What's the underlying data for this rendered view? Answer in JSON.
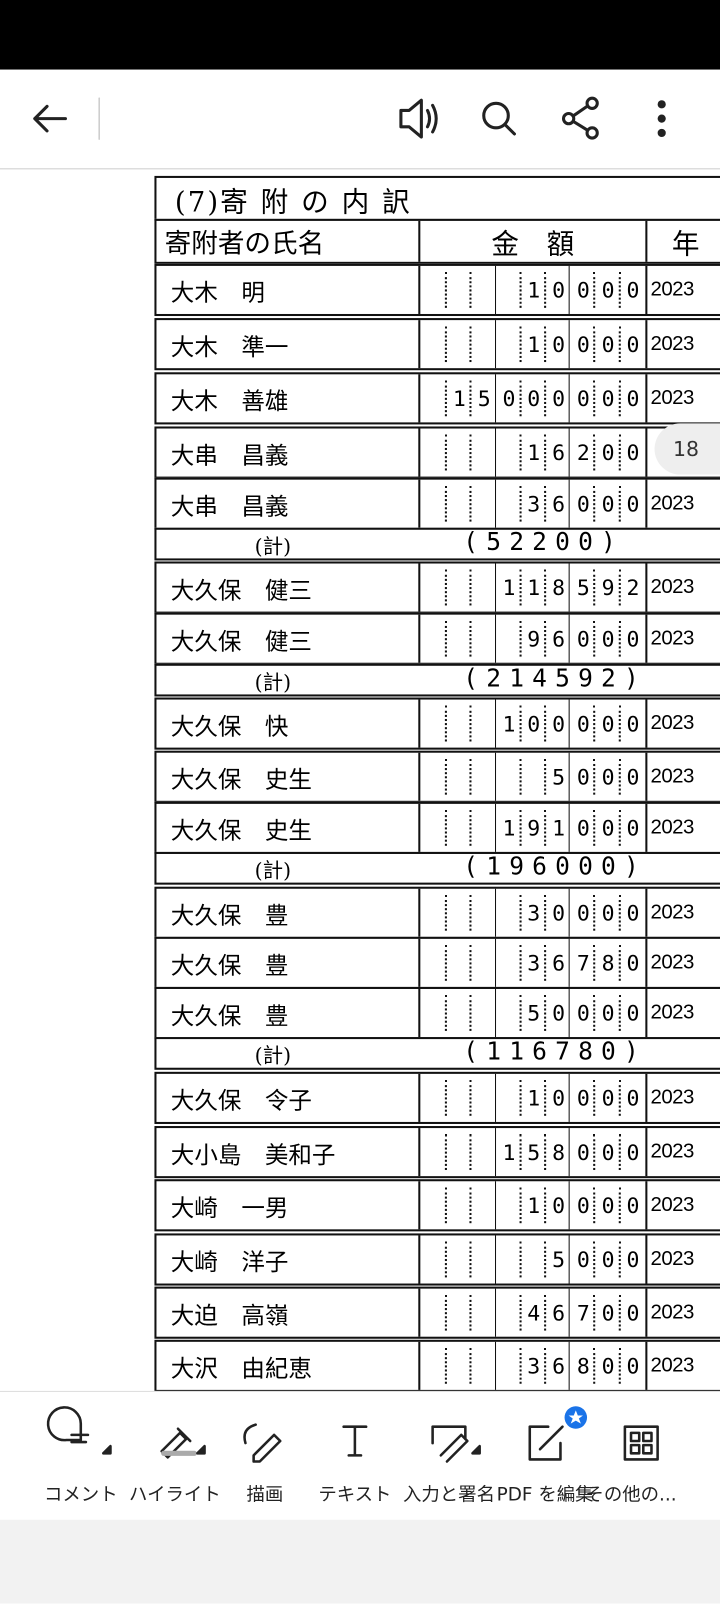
{
  "page_number": "18",
  "document": {
    "title": "(7)寄 附 の 内 訳",
    "headers": [
      "寄附者の氏名",
      "金　額",
      "年"
    ],
    "rows": [
      {
        "name": "大木　明",
        "amount": "10000",
        "year": "2023"
      },
      {
        "name": "大木　準一",
        "amount": "10000",
        "year": "2023"
      },
      {
        "name": "大木　善雄",
        "amount": "15000000",
        "year": "2023"
      },
      {
        "name": "大串　昌義",
        "amount": "16200"
      },
      {
        "name": "大串　昌義",
        "amount": "36000",
        "year": "2023"
      },
      {
        "label": "(計)",
        "total": "(52200)"
      },
      {
        "name": "大久保　健三",
        "amount": "118592",
        "year": "2023"
      },
      {
        "name": "大久保　健三",
        "amount": "96000",
        "year": "2023"
      },
      {
        "label": "(計)",
        "total": "(214592)"
      },
      {
        "name": "大久保　快",
        "amount": "100000",
        "year": "2023"
      },
      {
        "name": "大久保　史生",
        "amount": "5000",
        "year": "2023"
      },
      {
        "name": "大久保　史生",
        "amount": "191000",
        "year": "2023"
      },
      {
        "label": "(計)",
        "total": "(196000)"
      },
      {
        "name": "大久保　豊",
        "amount": "30000",
        "year": "2023"
      },
      {
        "name": "大久保　豊",
        "amount": "36780",
        "year": "2023"
      },
      {
        "name": "大久保　豊",
        "amount": "50000",
        "year": "2023"
      },
      {
        "label": "(計)",
        "total": "(116780)"
      },
      {
        "name": "大久保　令子",
        "amount": "10000",
        "year": "2023"
      },
      {
        "name": "大小島　美和子",
        "amount": "158000",
        "year": "2023"
      },
      {
        "name": "大崎　一男",
        "amount": "10000",
        "year": "2023"
      },
      {
        "name": "大崎　洋子",
        "amount": "5000",
        "year": "2023"
      },
      {
        "name": "大迫　高嶺",
        "amount": "46700",
        "year": "2023"
      },
      {
        "name": "大沢　由紀恵",
        "amount": "36800",
        "year": "2023"
      }
    ]
  },
  "bottom_toolbar": [
    "コメント",
    "ハイライト",
    "描画",
    "テキスト",
    "入力と署名",
    "PDF を編集",
    "その他の..."
  ]
}
